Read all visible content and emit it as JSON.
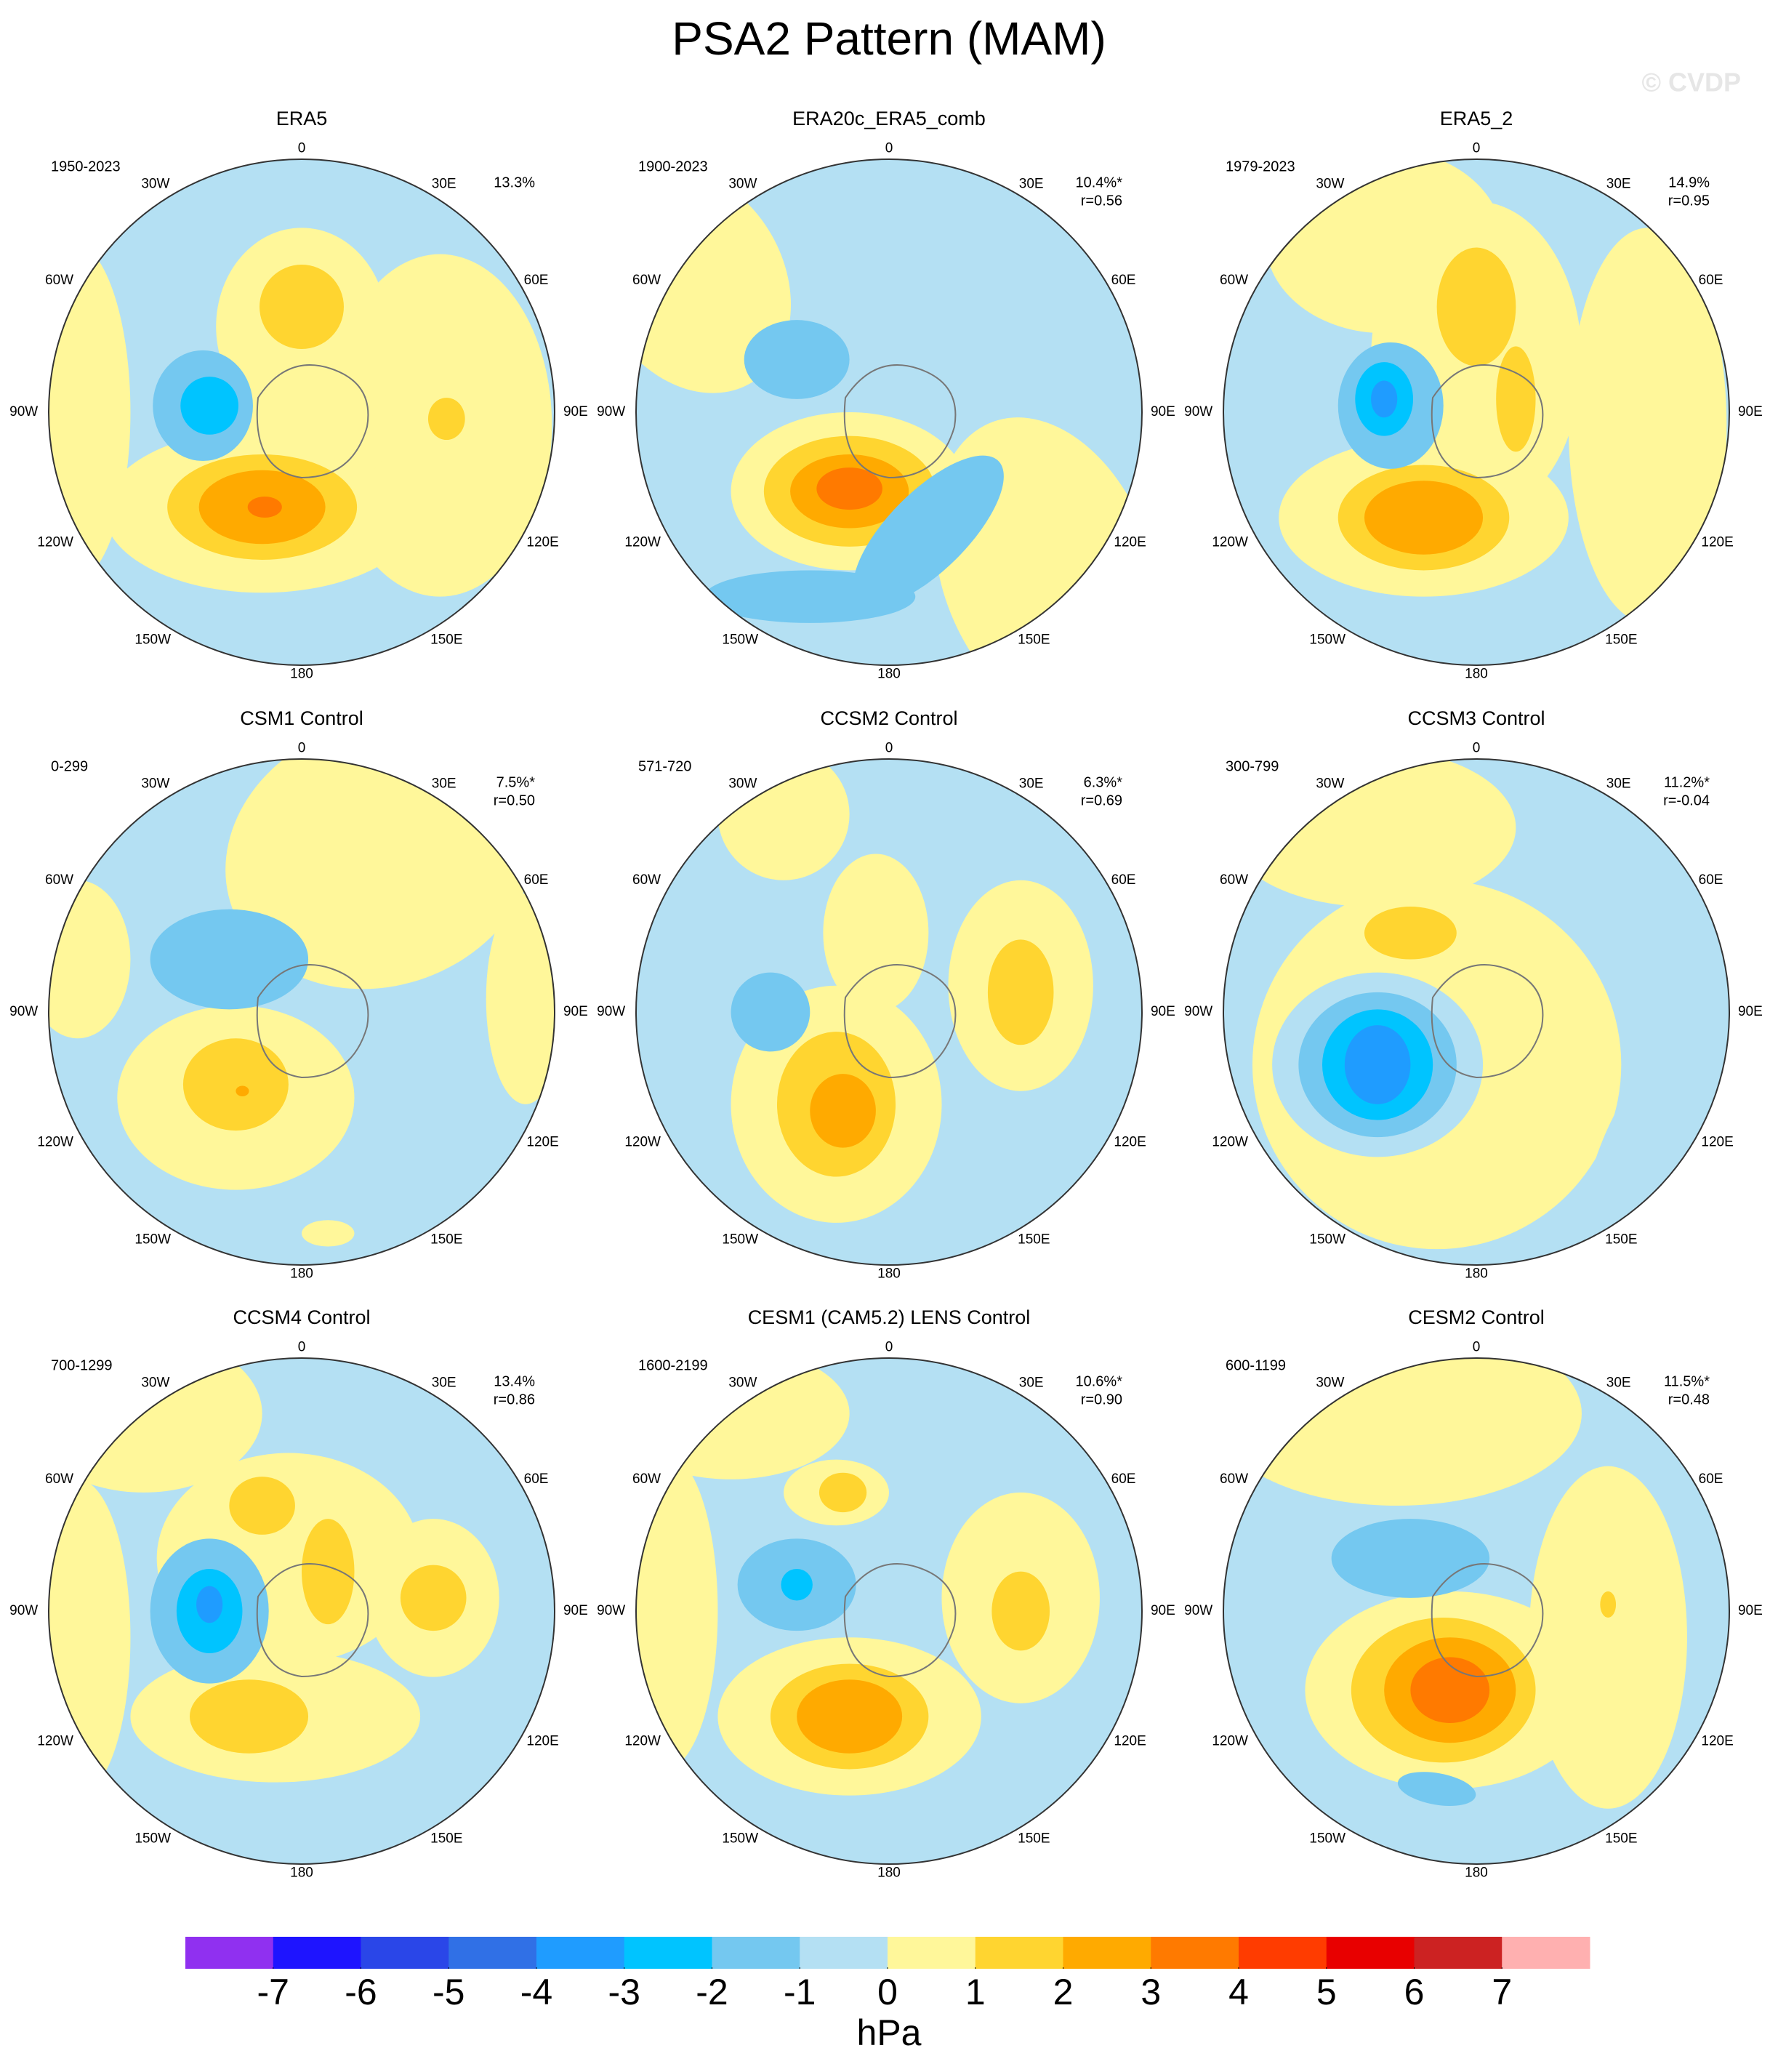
{
  "title": "PSA2 Pattern (MAM)",
  "watermark": "© CVDP",
  "longitude_labels": [
    "0",
    "30E",
    "60E",
    "90E",
    "120E",
    "150E",
    "180",
    "150W",
    "120W",
    "90W",
    "60W",
    "30W"
  ],
  "panels": [
    {
      "title": "ERA5",
      "period": "1950-2023",
      "pct": "13.3%"
    },
    {
      "title": "ERA20c_ERA5_comb",
      "period": "1900-2023",
      "pct": "10.4%*",
      "r": "r=0.56"
    },
    {
      "title": "ERA5_2",
      "period": "1979-2023",
      "pct": "14.9%",
      "r": "r=0.95"
    },
    {
      "title": "CSM1 Control",
      "period": "0-299",
      "pct": "7.5%*",
      "r": "r=0.50"
    },
    {
      "title": "CCSM2 Control",
      "period": "571-720",
      "pct": "6.3%*",
      "r": "r=0.69"
    },
    {
      "title": "CCSM3 Control",
      "period": "300-799",
      "pct": "11.2%*",
      "r": "r=-0.04"
    },
    {
      "title": "CCSM4 Control",
      "period": "700-1299",
      "pct": "13.4%",
      "r": "r=0.86"
    },
    {
      "title": "CESM1 (CAM5.2) LENS Control",
      "period": "1600-2199",
      "pct": "10.6%*",
      "r": "r=0.90"
    },
    {
      "title": "CESM2 Control",
      "period": "600-1199",
      "pct": "11.5%*",
      "r": "r=0.48"
    }
  ],
  "colorbar": {
    "colors": [
      "#9030f0",
      "#1e14ff",
      "#2a46e8",
      "#3070e6",
      "#1f9cff",
      "#00c4ff",
      "#74c8f0",
      "#b4e0f3",
      "#fff79a",
      "#ffd530",
      "#ffaa00",
      "#ff7a00",
      "#ff3c00",
      "#e80000",
      "#cc2222",
      "#ffb0b0"
    ],
    "ticks": [
      -7,
      -6,
      -5,
      -4,
      -3,
      -2,
      -1,
      0,
      1,
      2,
      3,
      4,
      5,
      6,
      7
    ],
    "unit": "hPa"
  }
}
